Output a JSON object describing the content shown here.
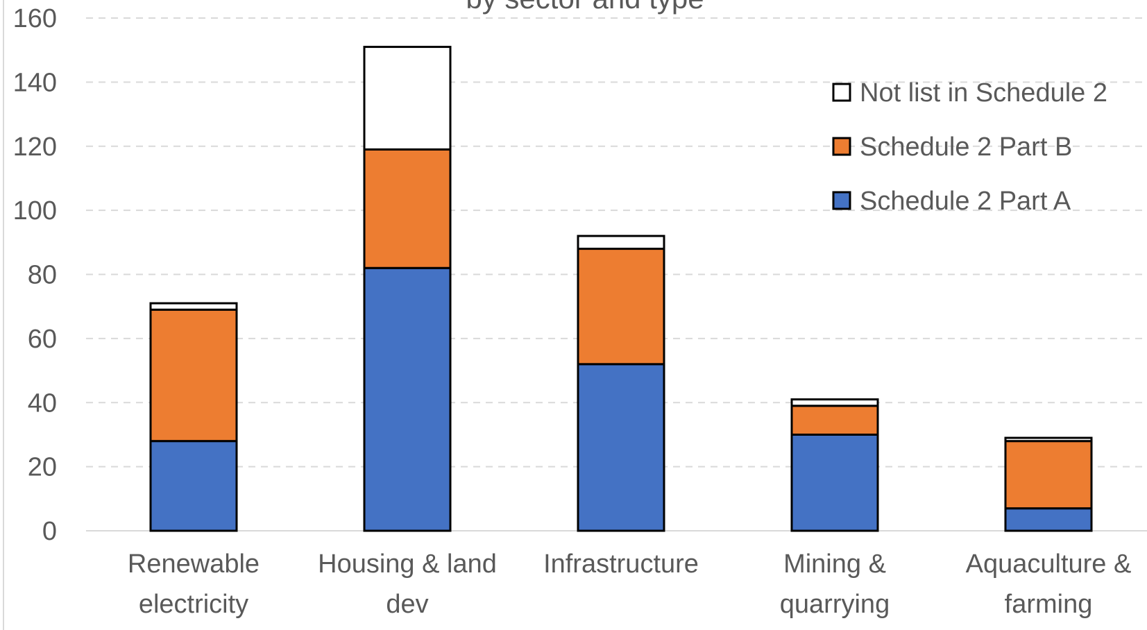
{
  "chart_data": {
    "type": "stacked_bar",
    "title": "by sector and type",
    "categories": [
      "Renewable electricity",
      "Housing & land dev",
      "Infrastructure",
      "Mining & quarrying",
      "Aquaculture & farming"
    ],
    "series": [
      {
        "name": "Schedule 2 Part A",
        "color": "#4472c4",
        "values": [
          28,
          82,
          52,
          30,
          7
        ]
      },
      {
        "name": "Schedule 2 Part B",
        "color": "#ed7d31",
        "values": [
          41,
          37,
          36,
          9,
          21
        ]
      },
      {
        "name": "Not list in Schedule 2",
        "color": "#ffffff",
        "values": [
          2,
          32,
          4,
          2,
          1
        ]
      }
    ],
    "ylim": [
      0,
      160
    ],
    "yticks": [
      0,
      20,
      40,
      60,
      80,
      100,
      120,
      140,
      160
    ],
    "grid": true,
    "legend": "upper right"
  }
}
